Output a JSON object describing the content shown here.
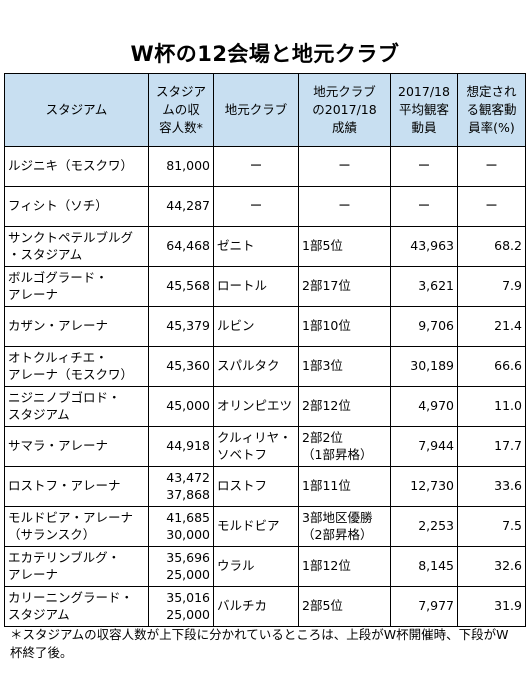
{
  "title": "W杯の12会場と地元クラブ",
  "columns": [
    "スタジアム",
    "スタジア\nムの収\n容人数*",
    "地元クラブ",
    "地元クラブ\nの2017/18\n成績",
    "2017/18\n平均観客\n動員",
    "想定され\nる観客動\n員率(%)"
  ],
  "rows": [
    [
      [
        "ルジニキ（モスクワ）"
      ],
      [
        "81,000"
      ],
      [
        "ー"
      ],
      [
        "ー"
      ],
      [
        "ー"
      ],
      [
        "ー"
      ]
    ],
    [
      [
        "フィシト（ソチ）"
      ],
      [
        "44,287"
      ],
      [
        "ー"
      ],
      [
        "ー"
      ],
      [
        "ー"
      ],
      [
        "ー"
      ]
    ],
    [
      [
        "サンクトペテルブルグ",
        "・スタジアム"
      ],
      [
        "64,468"
      ],
      [
        "ゼニト"
      ],
      [
        "1部5位"
      ],
      [
        "43,963"
      ],
      [
        "68.2"
      ]
    ],
    [
      [
        "ボルゴグラード・",
        "アレーナ"
      ],
      [
        "45,568"
      ],
      [
        "ロートル"
      ],
      [
        "2部17位"
      ],
      [
        "3,621"
      ],
      [
        "7.9"
      ]
    ],
    [
      [
        "カザン・アレーナ"
      ],
      [
        "45,379"
      ],
      [
        "ルビン"
      ],
      [
        "1部10位"
      ],
      [
        "9,706"
      ],
      [
        "21.4"
      ]
    ],
    [
      [
        "オトクルィチエ・",
        "アレーナ（モスクワ）"
      ],
      [
        "45,360"
      ],
      [
        "スパルタク"
      ],
      [
        "1部3位"
      ],
      [
        "30,189"
      ],
      [
        "66.6"
      ]
    ],
    [
      [
        "ニジニノブゴロド・",
        "スタジアム"
      ],
      [
        "45,000"
      ],
      [
        "オリンピエツ"
      ],
      [
        "2部12位"
      ],
      [
        "4,970"
      ],
      [
        "11.0"
      ]
    ],
    [
      [
        "サマラ・アレーナ"
      ],
      [
        "44,918"
      ],
      [
        "クルィリヤ・",
        "ソベトフ"
      ],
      [
        "2部2位",
        "（1部昇格）"
      ],
      [
        "7,944"
      ],
      [
        "17.7"
      ]
    ],
    [
      [
        "ロストフ・アレーナ"
      ],
      [
        "43,472",
        "37,868"
      ],
      [
        "ロストフ"
      ],
      [
        "1部11位"
      ],
      [
        "12,730"
      ],
      [
        "33.6"
      ]
    ],
    [
      [
        "モルドビア・アレーナ",
        "（サランスク）"
      ],
      [
        "41,685",
        "30,000"
      ],
      [
        "モルドビア"
      ],
      [
        "3部地区優勝",
        "（2部昇格）"
      ],
      [
        "2,253"
      ],
      [
        "7.5"
      ]
    ],
    [
      [
        "エカテリンブルグ・",
        "アレーナ"
      ],
      [
        "35,696",
        "25,000"
      ],
      [
        "ウラル"
      ],
      [
        "1部12位"
      ],
      [
        "8,145"
      ],
      [
        "32.6"
      ]
    ],
    [
      [
        "カリーニングラード・",
        "スタジアム"
      ],
      [
        "35,016",
        "25,000"
      ],
      [
        "バルチカ"
      ],
      [
        "2部5位"
      ],
      [
        "7,977"
      ],
      [
        "31.9"
      ]
    ]
  ],
  "footnote": "＊スタジアムの収容人数が上下段に分かれているところは、上段がW杯開催時、下段がW杯終了後。",
  "colors": {
    "header_bg": "#c8dff1",
    "border": "#000000"
  }
}
